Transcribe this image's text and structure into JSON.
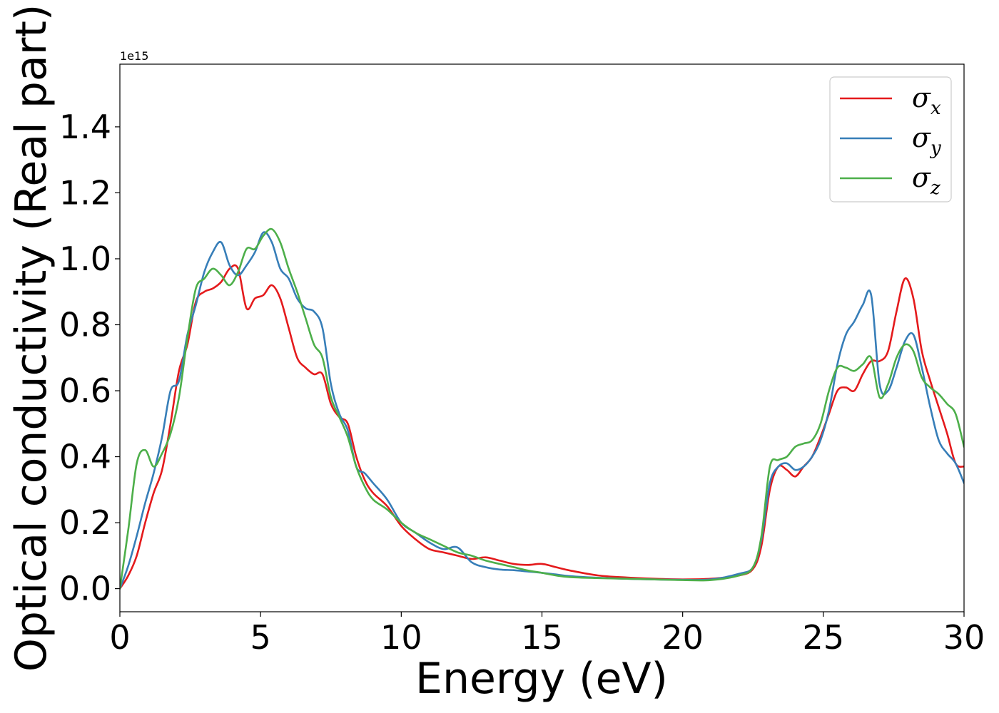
{
  "chart_data": {
    "type": "line",
    "title": "",
    "xlabel": "Energy (eV)",
    "ylabel": "Optical conductivity (Real part)",
    "offset_text": "1e15",
    "xlim": [
      0,
      30
    ],
    "ylim": [
      -0.07,
      1.59
    ],
    "y_scale_factor": 1000000000000000.0,
    "xticks": [
      0,
      5,
      10,
      15,
      20,
      25,
      30
    ],
    "xtick_labels": [
      "0",
      "5",
      "10",
      "15",
      "20",
      "25",
      "30"
    ],
    "yticks": [
      0.0,
      0.2,
      0.4,
      0.6,
      0.8,
      1.0,
      1.2,
      1.4
    ],
    "ytick_labels": [
      "0.0",
      "0.2",
      "0.4",
      "0.6",
      "0.8",
      "1.0",
      "1.2",
      "1.4"
    ],
    "grid": false,
    "legend_position": "top-right",
    "x": [
      0,
      0.3,
      0.6,
      0.9,
      1.2,
      1.5,
      1.8,
      2.1,
      2.4,
      2.7,
      3.0,
      3.3,
      3.6,
      3.9,
      4.2,
      4.5,
      4.8,
      5.1,
      5.4,
      5.7,
      6.0,
      6.3,
      6.6,
      6.9,
      7.2,
      7.5,
      7.8,
      8.1,
      8.4,
      8.7,
      9.0,
      9.5,
      10,
      10.5,
      11,
      11.5,
      12,
      12.5,
      13,
      13.5,
      14,
      14.5,
      15,
      15.5,
      16,
      17,
      18,
      19,
      20,
      21,
      22,
      22.5,
      22.8,
      23.1,
      23.4,
      23.7,
      24.0,
      24.3,
      24.6,
      24.9,
      25.2,
      25.5,
      25.8,
      26.1,
      26.4,
      26.7,
      27.0,
      27.3,
      27.6,
      27.9,
      28.2,
      28.5,
      28.8,
      29.1,
      29.4,
      29.7,
      30.0
    ],
    "series": [
      {
        "name": "σx",
        "label_base": "σ",
        "label_sub": "x",
        "color": "#e41a1c",
        "values": [
          0.0,
          0.04,
          0.1,
          0.2,
          0.29,
          0.36,
          0.5,
          0.66,
          0.74,
          0.87,
          0.9,
          0.91,
          0.93,
          0.97,
          0.97,
          0.85,
          0.88,
          0.89,
          0.92,
          0.88,
          0.79,
          0.7,
          0.67,
          0.65,
          0.65,
          0.56,
          0.52,
          0.5,
          0.4,
          0.33,
          0.29,
          0.25,
          0.19,
          0.15,
          0.12,
          0.11,
          0.1,
          0.09,
          0.095,
          0.085,
          0.075,
          0.072,
          0.075,
          0.065,
          0.055,
          0.04,
          0.034,
          0.03,
          0.028,
          0.03,
          0.04,
          0.06,
          0.13,
          0.3,
          0.37,
          0.36,
          0.34,
          0.37,
          0.4,
          0.46,
          0.53,
          0.6,
          0.61,
          0.6,
          0.65,
          0.69,
          0.69,
          0.72,
          0.84,
          0.94,
          0.88,
          0.72,
          0.63,
          0.55,
          0.47,
          0.38,
          0.37
        ]
      },
      {
        "name": "σy",
        "label_base": "σ",
        "label_sub": "y",
        "color": "#377eb8",
        "values": [
          0.0,
          0.07,
          0.16,
          0.26,
          0.35,
          0.46,
          0.6,
          0.63,
          0.77,
          0.86,
          0.96,
          1.02,
          1.05,
          0.98,
          0.95,
          0.98,
          1.02,
          1.08,
          1.05,
          0.97,
          0.94,
          0.88,
          0.85,
          0.84,
          0.79,
          0.62,
          0.53,
          0.48,
          0.37,
          0.35,
          0.32,
          0.27,
          0.2,
          0.17,
          0.14,
          0.12,
          0.125,
          0.08,
          0.065,
          0.058,
          0.056,
          0.052,
          0.048,
          0.043,
          0.038,
          0.033,
          0.03,
          0.028,
          0.027,
          0.028,
          0.045,
          0.065,
          0.15,
          0.32,
          0.37,
          0.38,
          0.36,
          0.37,
          0.4,
          0.45,
          0.54,
          0.68,
          0.77,
          0.81,
          0.86,
          0.89,
          0.62,
          0.6,
          0.67,
          0.75,
          0.77,
          0.67,
          0.55,
          0.45,
          0.41,
          0.38,
          0.32
        ]
      },
      {
        "name": "σz",
        "label_base": "σ",
        "label_sub": "z",
        "color": "#4daf4a",
        "values": [
          0.0,
          0.18,
          0.38,
          0.42,
          0.37,
          0.41,
          0.47,
          0.58,
          0.76,
          0.91,
          0.94,
          0.97,
          0.95,
          0.92,
          0.96,
          1.03,
          1.03,
          1.07,
          1.09,
          1.05,
          0.97,
          0.9,
          0.82,
          0.74,
          0.7,
          0.58,
          0.52,
          0.46,
          0.37,
          0.31,
          0.27,
          0.24,
          0.2,
          0.17,
          0.15,
          0.13,
          0.11,
          0.1,
          0.085,
          0.075,
          0.065,
          0.055,
          0.048,
          0.04,
          0.035,
          0.032,
          0.03,
          0.028,
          0.026,
          0.026,
          0.04,
          0.065,
          0.16,
          0.37,
          0.39,
          0.4,
          0.43,
          0.44,
          0.45,
          0.5,
          0.6,
          0.67,
          0.67,
          0.66,
          0.68,
          0.7,
          0.58,
          0.62,
          0.7,
          0.74,
          0.72,
          0.64,
          0.61,
          0.59,
          0.56,
          0.53,
          0.43
        ]
      }
    ]
  }
}
